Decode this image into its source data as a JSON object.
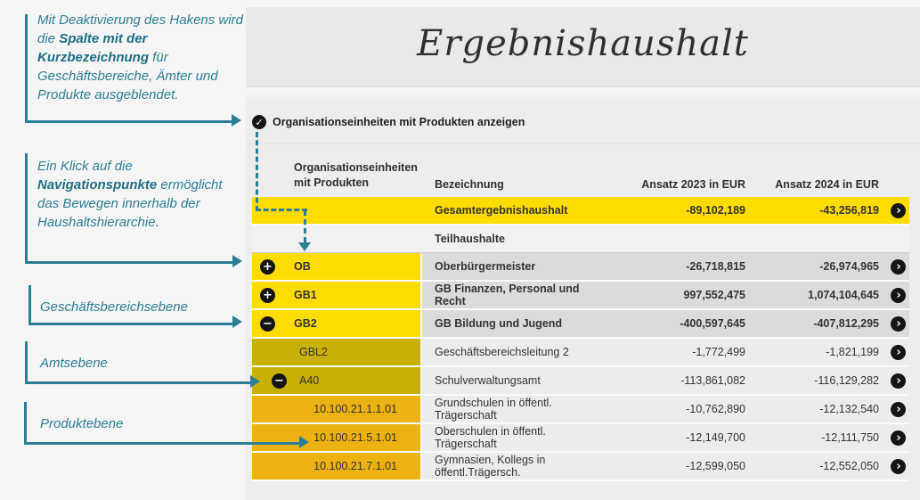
{
  "page": {
    "title": "Ergebnishaushalt"
  },
  "checkbox": {
    "label": "Organisationseinheiten mit Produkten anzeigen",
    "checked": true
  },
  "annotations": {
    "note1": {
      "parts": [
        {
          "text": "Mit Deaktivierung des Hakens wird die ",
          "bold": false
        },
        {
          "text": "Spalte mit der Kurzbezeichnung",
          "bold": true
        },
        {
          "text": " für Geschäftsbereiche, Ämter und Produkte ausgeblendet.",
          "bold": false
        }
      ]
    },
    "note2": {
      "parts": [
        {
          "text": "Ein Klick auf die ",
          "bold": false
        },
        {
          "text": "Navigationspunkte",
          "bold": true
        },
        {
          "text": " ermöglicht das Bewegen innerhalb der Haushaltshierarchie.",
          "bold": false
        }
      ]
    },
    "level_labels": {
      "gb": "Geschäftsbereichsebene",
      "amt": "Amtsebene",
      "produkt": "Produktebene"
    }
  },
  "table": {
    "headers": {
      "org_line1": "Organisationseinheiten",
      "org_line2": "mit Produkten",
      "name": "Bezeichnung",
      "a2023": "Ansatz 2023 in EUR",
      "a2024": "Ansatz 2024 in EUR"
    },
    "rows": [
      {
        "type": "total",
        "icon": null,
        "code": "",
        "name": "Gesamtergebnishaushalt",
        "a2023": "-89,102,189",
        "a2024": "-43,256,819",
        "arrow": true
      },
      {
        "type": "section",
        "icon": null,
        "code": "",
        "name": "Teilhaushalte",
        "a2023": "",
        "a2024": "",
        "arrow": false
      },
      {
        "type": "gb",
        "icon": "plus",
        "code": "OB",
        "name": "Oberbürgermeister",
        "a2023": "-26,718,815",
        "a2024": "-26,974,965",
        "arrow": true
      },
      {
        "type": "gb",
        "icon": "plus",
        "code": "GB1",
        "name": "GB Finanzen, Personal und Recht",
        "a2023": "997,552,475",
        "a2024": "1,074,104,645",
        "arrow": true
      },
      {
        "type": "gb",
        "icon": "minus",
        "code": "GB2",
        "name": "GB Bildung und Jugend",
        "a2023": "-400,597,645",
        "a2024": "-407,812,295",
        "arrow": true
      },
      {
        "type": "gbl",
        "icon": null,
        "code": "GBL2",
        "name": "Geschäftsbereichsleitung 2",
        "a2023": "-1,772,499",
        "a2024": "-1,821,199",
        "arrow": true
      },
      {
        "type": "amt",
        "icon": "minus",
        "code": "A40",
        "name": "Schulverwaltungsamt",
        "a2023": "-113,861,082",
        "a2024": "-116,129,282",
        "arrow": true
      },
      {
        "type": "product",
        "icon": null,
        "code": "10.100.21.1.1.01",
        "name": "Grundschulen in öffentl. Trägerschaft",
        "a2023": "-10,762,890",
        "a2024": "-12,132,540",
        "arrow": true
      },
      {
        "type": "product",
        "icon": null,
        "code": "10.100.21.5.1.01",
        "name": "Oberschulen in öffentl. Trägerschaft",
        "a2023": "-12,149,700",
        "a2024": "-12,111,750",
        "arrow": true
      },
      {
        "type": "product",
        "icon": null,
        "code": "10.100.21.7.1.01",
        "name": "Gymnasien, Kollegs in öffentl.Trägersch.",
        "a2023": "-12,599,050",
        "a2024": "-12,552,050",
        "arrow": true
      }
    ]
  },
  "icons": {
    "checkbox": "✓",
    "plus": "+",
    "minus": "−",
    "navigate": "›"
  },
  "colors": {
    "accent_teal": "#2b7e95",
    "highlight_yellow": "#ffdc00",
    "olive_yellow": "#c9b007",
    "amber_yellow": "#ecb211",
    "row_gray": "#dbdbdb",
    "row_light": "#ececec",
    "section_light": "#f1f1f1",
    "icon_black": "#151515",
    "panel_bg": "#ededed",
    "title_band_bg": "#e9e9e9",
    "page_bg": "#f5f5f5",
    "text_dark": "#333333"
  }
}
